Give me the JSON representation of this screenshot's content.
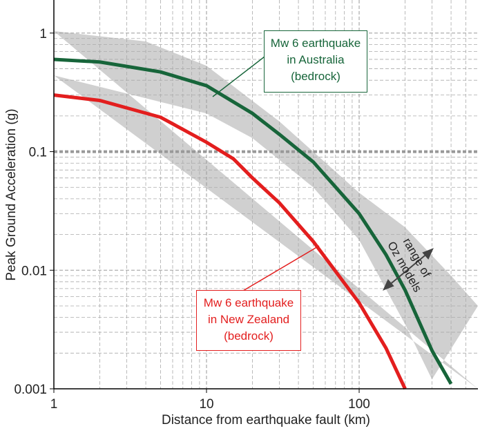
{
  "chart_data": {
    "type": "line",
    "x_label": "Distance from earthquake fault (km)",
    "y_label": "Peak Ground Acceleration (g)",
    "log_x": true,
    "log_y": true,
    "grid": true,
    "minor_grid": true,
    "xlim": [
      1,
      600
    ],
    "ylim": [
      0.001,
      1.9
    ],
    "xticks": [
      1,
      10,
      100
    ],
    "yticks": [
      0.001,
      0.01,
      0.1,
      1
    ],
    "hline": 0.1,
    "band": {
      "color": "#d0d0d0",
      "annotation": [
        "range of",
        "Oz models"
      ],
      "x": [
        1,
        4,
        10,
        30,
        100,
        200,
        400,
        600
      ],
      "upper": [
        1.04,
        0.85,
        0.53,
        0.18,
        0.045,
        0.023,
        0.009,
        0.005
      ],
      "x_lower": [
        1,
        10,
        20,
        50,
        100,
        200,
        300
      ],
      "lower": [
        0.44,
        0.21,
        0.13,
        0.05,
        0.018,
        0.0035,
        0.0012
      ]
    },
    "series": [
      {
        "name": "Mw 6 earthquake in Australia (bedrock)",
        "color": "#17653a",
        "x": [
          1,
          2,
          5,
          10,
          20,
          30,
          50,
          100,
          150,
          200,
          300,
          400
        ],
        "values": [
          0.6,
          0.57,
          0.47,
          0.36,
          0.21,
          0.14,
          0.082,
          0.03,
          0.0135,
          0.0068,
          0.0021,
          0.0011
        ]
      },
      {
        "name": "Mw 6 earthquake in New Zealand (bedrock)",
        "color": "#e31e1e",
        "x": [
          1,
          2,
          5,
          10,
          15,
          20,
          30,
          50,
          100,
          150,
          200
        ],
        "values": [
          0.3,
          0.27,
          0.195,
          0.12,
          0.087,
          0.06,
          0.037,
          0.0175,
          0.0053,
          0.0022,
          0.001
        ]
      }
    ]
  }
}
